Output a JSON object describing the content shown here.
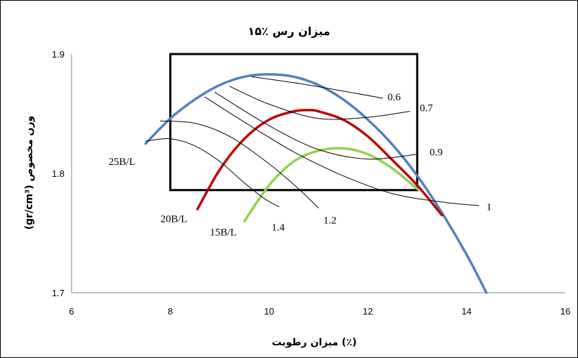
{
  "chart_data": {
    "type": "line",
    "title": "۱۵٪ میزان رس",
    "xlabel": "میزان رطوبت (٪)",
    "ylabel": "(gr/cm³) وزن مخصوص",
    "xlim": [
      6,
      16
    ],
    "ylim": [
      1.7,
      1.9
    ],
    "x_ticks": [
      "6",
      "8",
      "10",
      "12",
      "14",
      "16"
    ],
    "y_ticks": [
      "1.7",
      "1.8",
      "1.9"
    ],
    "grid": false,
    "series": [
      {
        "name": "25B/L",
        "color": "#4f81bd",
        "x": [
          7.5,
          8.0,
          8.5,
          9.0,
          9.5,
          10.0,
          10.5,
          11.0,
          11.5,
          12.0,
          12.5,
          13.0,
          13.5,
          14.0,
          14.4
        ],
        "y": [
          1.825,
          1.846,
          1.862,
          1.874,
          1.881,
          1.883,
          1.881,
          1.874,
          1.862,
          1.845,
          1.824,
          1.798,
          1.767,
          1.732,
          1.7
        ]
      },
      {
        "name": "20B/L",
        "color": "#c00000",
        "x": [
          8.55,
          9.0,
          9.5,
          10.0,
          10.5,
          10.8,
          11.0,
          11.5,
          12.0,
          12.5,
          13.0,
          13.5
        ],
        "y": [
          1.77,
          1.803,
          1.829,
          1.845,
          1.852,
          1.853,
          1.852,
          1.845,
          1.831,
          1.811,
          1.79,
          1.765
        ]
      },
      {
        "name": "15B/L",
        "color": "#92d050",
        "x": [
          9.5,
          10.0,
          10.5,
          11.0,
          11.5,
          12.0,
          12.5,
          13.0
        ],
        "y": [
          1.76,
          1.79,
          1.81,
          1.819,
          1.821,
          1.816,
          1.804,
          1.787
        ]
      },
      {
        "name": "0.6",
        "color": "#000000",
        "x": [
          9.65,
          10.5,
          11.5,
          12.3
        ],
        "y": [
          1.881,
          1.876,
          1.869,
          1.863
        ]
      },
      {
        "name": "0.7",
        "color": "#000000",
        "x": [
          9.2,
          10.0,
          11.0,
          12.0,
          12.85
        ],
        "y": [
          1.873,
          1.858,
          1.846,
          1.847,
          1.852
        ]
      },
      {
        "name": "0.9",
        "color": "#000000",
        "x": [
          8.9,
          10.0,
          11.0,
          12.0,
          13.0
        ],
        "y": [
          1.868,
          1.84,
          1.82,
          1.812,
          1.816
        ]
      },
      {
        "name": "1",
        "color": "#000000",
        "x": [
          8.7,
          9.5,
          10.5,
          11.5,
          12.5,
          13.5,
          14.25
        ],
        "y": [
          1.864,
          1.843,
          1.818,
          1.798,
          1.783,
          1.776,
          1.773
        ]
      },
      {
        "name": "1.2",
        "color": "#000000",
        "x": [
          7.8,
          8.5,
          9.2,
          10.0,
          10.6,
          11.0
        ],
        "y": [
          1.844,
          1.842,
          1.831,
          1.808,
          1.787,
          1.771
        ]
      },
      {
        "name": "1.4",
        "color": "#000000",
        "x": [
          7.5,
          8.0,
          8.5,
          9.0,
          9.5,
          9.9,
          10.2
        ],
        "y": [
          1.827,
          1.829,
          1.823,
          1.81,
          1.792,
          1.779,
          1.772
        ]
      }
    ],
    "box": {
      "x": [
        8,
        13
      ],
      "y": [
        1.786,
        1.9
      ],
      "color": "#000000"
    },
    "annotations": [
      {
        "text": "0.6",
        "x": 12.4,
        "y": 1.864
      },
      {
        "text": "0.7",
        "x": 13.05,
        "y": 1.855
      },
      {
        "text": "0.9",
        "x": 13.25,
        "y": 1.818
      },
      {
        "text": "1",
        "x": 14.4,
        "y": 1.772
      },
      {
        "text": "1.2",
        "x": 11.1,
        "y": 1.761
      },
      {
        "text": "1.4",
        "x": 10.05,
        "y": 1.755
      },
      {
        "text": "25B/L",
        "x": 6.75,
        "y": 1.81
      },
      {
        "text": "20B/L",
        "x": 7.8,
        "y": 1.762
      },
      {
        "text": "15B/L",
        "x": 8.8,
        "y": 1.751
      }
    ]
  }
}
